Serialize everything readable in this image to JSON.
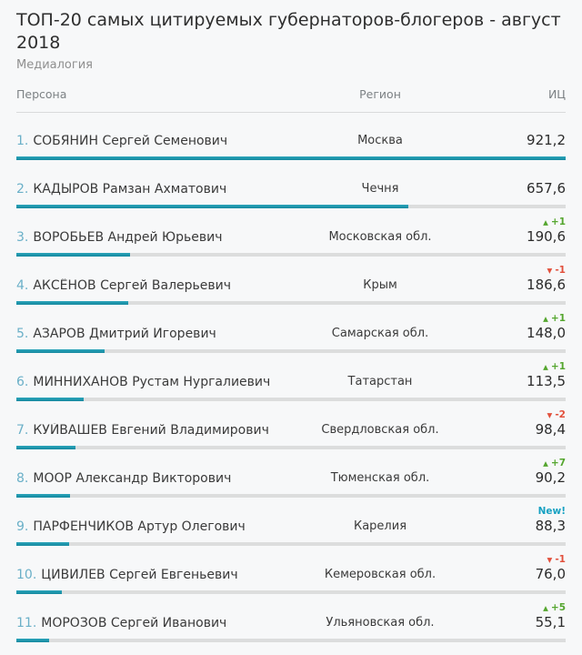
{
  "colors": {
    "background": "#f7f8f9",
    "bar_fill_teal": "#1b95ac",
    "bar_track_gray": "#dcdddd",
    "rank_number_blue": "#6bb0c8",
    "change_up_green": "#55a62f",
    "change_down_red": "#e2503c",
    "change_new_teal": "#17a1c2"
  },
  "chart_data": {
    "type": "table",
    "title": "ТОП-20 самых цитируемых губернаторов-блогеров - август 2018",
    "source": "Медиалогия",
    "columns": [
      "Персона",
      "Регион",
      "ИЦ"
    ],
    "value_scale_max": 921.2,
    "bars": "each row has a horizontal bar proportional to index / 921.2",
    "rows": [
      {
        "rank": "1.",
        "person": "СОБЯНИН Сергей Семенович",
        "region": "Москва",
        "index": 921.2,
        "index_display": "921,2",
        "change": null,
        "bar_pct": 100
      },
      {
        "rank": "2.",
        "person": "КАДЫРОВ Рамзан Ахматович",
        "region": "Чечня",
        "index": 657.6,
        "index_display": "657,6",
        "change": null,
        "bar_pct": 71.4
      },
      {
        "rank": "3.",
        "person": "ВОРОБЬЕВ Андрей Юрьевич",
        "region": "Московская обл.",
        "index": 190.6,
        "index_display": "190,6",
        "change": {
          "dir": "up",
          "label": "+1"
        },
        "bar_pct": 20.7
      },
      {
        "rank": "4.",
        "person": "АКСЁНОВ Сергей Валерьевич",
        "region": "Крым",
        "index": 186.6,
        "index_display": "186,6",
        "change": {
          "dir": "down",
          "label": "-1"
        },
        "bar_pct": 20.3
      },
      {
        "rank": "5.",
        "person": "АЗАРОВ Дмитрий Игоревич",
        "region": "Самарская обл.",
        "index": 148.0,
        "index_display": "148,0",
        "change": {
          "dir": "up",
          "label": "+1"
        },
        "bar_pct": 16.1
      },
      {
        "rank": "6.",
        "person": "МИННИХАНОВ Рустам Нургалиевич",
        "region": "Татарстан",
        "index": 113.5,
        "index_display": "113,5",
        "change": {
          "dir": "up",
          "label": "+1"
        },
        "bar_pct": 12.3
      },
      {
        "rank": "7.",
        "person": "КУЙВАШЕВ Евгений Владимирович",
        "region": "Свердловская обл.",
        "index": 98.4,
        "index_display": "98,4",
        "change": {
          "dir": "down",
          "label": "-2"
        },
        "bar_pct": 10.7
      },
      {
        "rank": "8.",
        "person": "МООР Александр Викторович",
        "region": "Тюменская обл.",
        "index": 90.2,
        "index_display": "90,2",
        "change": {
          "dir": "up",
          "label": "+7"
        },
        "bar_pct": 9.8
      },
      {
        "rank": "9.",
        "person": "ПАРФЕНЧИКОВ Артур Олегович",
        "region": "Карелия",
        "index": 88.3,
        "index_display": "88,3",
        "change": {
          "dir": "new",
          "label": "New!"
        },
        "bar_pct": 9.6
      },
      {
        "rank": "10.",
        "person": "ЦИВИЛЕВ Сергей Евгеньевич",
        "region": "Кемеровская обл.",
        "index": 76.0,
        "index_display": "76,0",
        "change": {
          "dir": "down",
          "label": "-1"
        },
        "bar_pct": 8.3
      },
      {
        "rank": "11.",
        "person": "МОРОЗОВ Сергей Иванович",
        "region": "Ульяновская обл.",
        "index": 55.1,
        "index_display": "55,1",
        "change": {
          "dir": "up",
          "label": "+5"
        },
        "bar_pct": 6.0
      }
    ]
  }
}
